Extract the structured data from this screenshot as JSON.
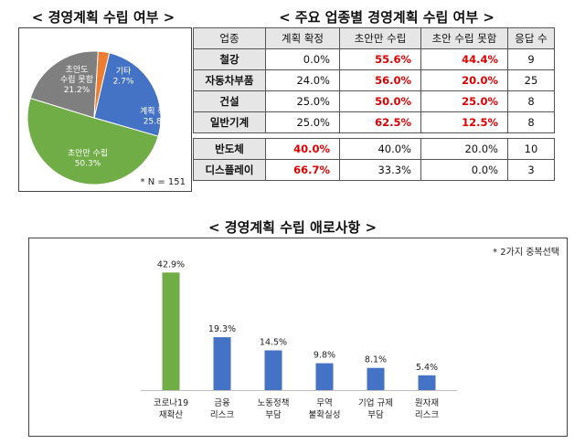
{
  "headings": {
    "pie": "< 경영계획 수립 여부 >",
    "table": "< 주요 업종별 경영계획 수립 여부 >",
    "bar": "< 경영계획 수립 애로사항 >"
  },
  "notes": {
    "pie": "* N = 151",
    "bar": "* 2가지 중복선택"
  },
  "chart_data": [
    {
      "type": "pie",
      "title": "경영계획 수립 여부",
      "slices": [
        {
          "label": "계획 확정",
          "value": 25.8,
          "display": "25.8%",
          "color": "#4472c4"
        },
        {
          "label": "초안만 수립",
          "value": 50.3,
          "display": "50.3%",
          "color": "#70ad47"
        },
        {
          "label": "초안도 수립 못함",
          "value": 21.2,
          "display": "21.2%",
          "color": "#7f7f7f"
        },
        {
          "label": "기타",
          "value": 2.7,
          "display": "2.7%",
          "color": "#ed7d31"
        }
      ],
      "n": 151
    },
    {
      "type": "table",
      "title": "주요 업종별 경영계획 수립 여부",
      "columns": [
        "업종",
        "계획 확정",
        "초안만 수립",
        "초안 수립 못함",
        "응답 수"
      ],
      "rows": [
        {
          "name": "철강",
          "cells": [
            "0.0%",
            "55.6%",
            "44.4%"
          ],
          "red": [
            false,
            true,
            true
          ],
          "count": "9"
        },
        {
          "name": "자동차부품",
          "cells": [
            "24.0%",
            "56.0%",
            "20.0%"
          ],
          "red": [
            false,
            true,
            true
          ],
          "count": "25"
        },
        {
          "name": "건설",
          "cells": [
            "25.0%",
            "50.0%",
            "25.0%"
          ],
          "red": [
            false,
            true,
            true
          ],
          "count": "8"
        },
        {
          "name": "일반기계",
          "cells": [
            "25.0%",
            "62.5%",
            "12.5%"
          ],
          "red": [
            false,
            true,
            true
          ],
          "count": "8"
        }
      ],
      "rows_lower": [
        {
          "name": "반도체",
          "cells": [
            "40.0%",
            "40.0%",
            "20.0%"
          ],
          "red": [
            true,
            false,
            false
          ],
          "count": "10"
        },
        {
          "name": "디스플레이",
          "cells": [
            "66.7%",
            "33.3%",
            "0.0%"
          ],
          "red": [
            true,
            false,
            false
          ],
          "count": "3"
        }
      ]
    },
    {
      "type": "bar",
      "title": "경영계획 수립 애로사항",
      "categories": [
        [
          "코로나19",
          "재확산"
        ],
        [
          "금융",
          "리스크"
        ],
        [
          "노동정책",
          "부담"
        ],
        [
          "무역",
          "불확실성"
        ],
        [
          "기업 규제",
          "부담"
        ],
        [
          "원자재",
          "리스크"
        ]
      ],
      "values": [
        42.9,
        19.3,
        14.5,
        9.8,
        8.1,
        5.4
      ],
      "labels": [
        "42.9%",
        "19.3%",
        "14.5%",
        "9.8%",
        "8.1%",
        "5.4%"
      ],
      "colors": [
        "#70ad47",
        "#4472c4",
        "#4472c4",
        "#4472c4",
        "#4472c4",
        "#4472c4"
      ],
      "ylim": [
        0,
        50
      ]
    }
  ]
}
